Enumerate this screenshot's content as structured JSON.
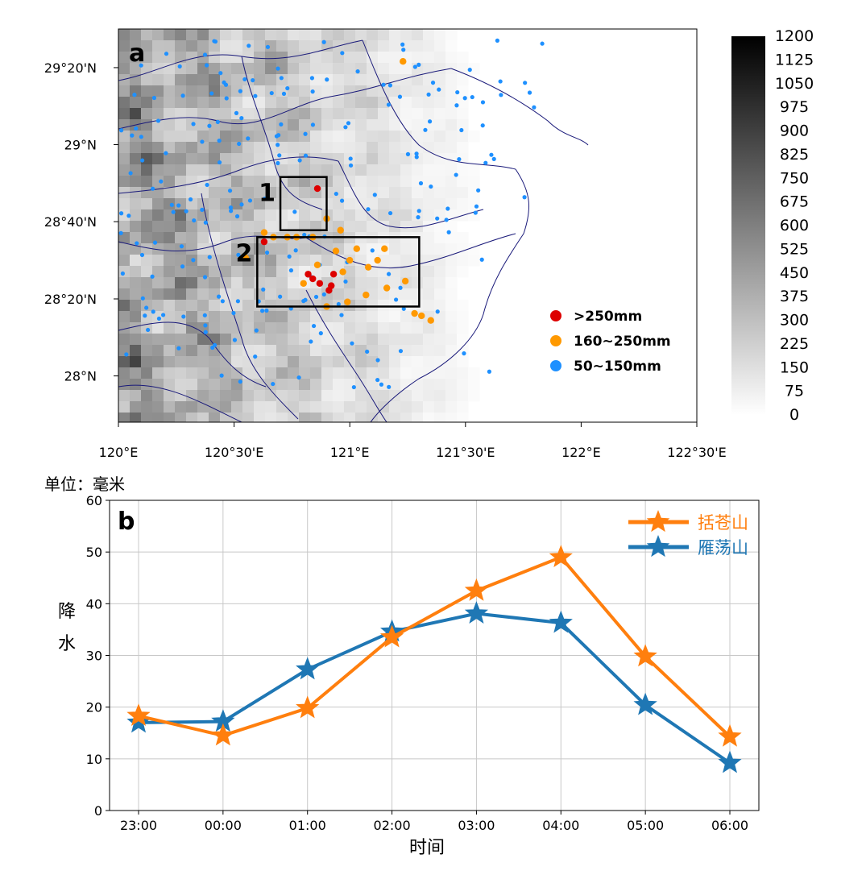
{
  "chart_data": [
    {
      "type": "map",
      "panel_label": "a",
      "x_ticks": [
        "120°E",
        "120°30'E",
        "121°E",
        "121°30'E",
        "122°E",
        "122°30'E"
      ],
      "x_tick_values": [
        120.0,
        120.5,
        121.0,
        121.5,
        122.0,
        122.5
      ],
      "y_ticks": [
        "29°20'N",
        "29°N",
        "28°40'N",
        "28°20'N",
        "28°N"
      ],
      "y_tick_values": [
        29.333,
        29.0,
        28.667,
        28.333,
        28.0
      ],
      "xlim": [
        120.0,
        122.5
      ],
      "ylim": [
        27.8,
        29.5
      ],
      "colorbar": {
        "ticks": [
          "1200",
          "1125",
          "1050",
          "975",
          "900",
          "825",
          "750",
          "675",
          "600",
          "525",
          "450",
          "375",
          "300",
          "225",
          "150",
          "75",
          "0"
        ],
        "range": [
          0,
          1200
        ],
        "colors": [
          "#ffffff",
          "#000000"
        ]
      },
      "boxes": [
        {
          "label": "1",
          "lon": [
            120.7,
            120.9
          ],
          "lat": [
            28.63,
            28.86
          ]
        },
        {
          "label": "2",
          "lon": [
            120.6,
            121.3
          ],
          "lat": [
            28.3,
            28.6
          ]
        }
      ],
      "legend": [
        {
          "label": ">250mm",
          "color": "#dd0000"
        },
        {
          "label": "160~250mm",
          "color": "#ff9900"
        },
        {
          "label": "50~150mm",
          "color": "#1e90ff"
        }
      ],
      "stations_red": [
        [
          120.86,
          28.81
        ],
        [
          120.84,
          28.42
        ],
        [
          120.87,
          28.4
        ],
        [
          120.91,
          28.37
        ],
        [
          120.93,
          28.44
        ],
        [
          120.92,
          28.39
        ],
        [
          120.82,
          28.44
        ],
        [
          120.63,
          28.58
        ]
      ],
      "stations_orange": [
        [
          120.9,
          28.68
        ],
        [
          120.96,
          28.63
        ],
        [
          120.63,
          28.62
        ],
        [
          120.67,
          28.6
        ],
        [
          120.73,
          28.6
        ],
        [
          120.77,
          28.6
        ],
        [
          120.84,
          28.6
        ],
        [
          120.94,
          28.54
        ],
        [
          121.03,
          28.55
        ],
        [
          121.15,
          28.55
        ],
        [
          121.12,
          28.5
        ],
        [
          121.08,
          28.47
        ],
        [
          121.0,
          28.5
        ],
        [
          120.97,
          28.45
        ],
        [
          120.86,
          28.48
        ],
        [
          120.8,
          28.4
        ],
        [
          121.16,
          28.38
        ],
        [
          121.24,
          28.41
        ],
        [
          121.07,
          28.35
        ],
        [
          120.99,
          28.32
        ],
        [
          120.9,
          28.3
        ],
        [
          121.28,
          28.27
        ],
        [
          121.31,
          28.26
        ],
        [
          121.35,
          28.24
        ],
        [
          120.55,
          28.51
        ],
        [
          121.23,
          29.36
        ]
      ]
    },
    {
      "type": "line",
      "panel_label": "b",
      "title": "",
      "ylabel": "降水",
      "xlabel": "时间",
      "unit_label": "单位：毫米",
      "ylim": [
        0,
        60
      ],
      "yticks": [
        0,
        10,
        20,
        30,
        40,
        50,
        60
      ],
      "grid": true,
      "legend_position": "top-right",
      "categories": [
        "23:00",
        "00:00",
        "01:00",
        "02:00",
        "03:00",
        "04:00",
        "05:00",
        "06:00"
      ],
      "series": [
        {
          "name": "括苍山",
          "color": "#ff7f0e",
          "values": [
            18.3,
            14.5,
            19.8,
            33.5,
            42.5,
            49.0,
            29.8,
            14.3
          ]
        },
        {
          "name": "雁荡山",
          "color": "#1f77b4",
          "values": [
            17.0,
            17.2,
            27.3,
            34.6,
            38.1,
            36.3,
            20.4,
            9.2
          ]
        }
      ]
    }
  ]
}
